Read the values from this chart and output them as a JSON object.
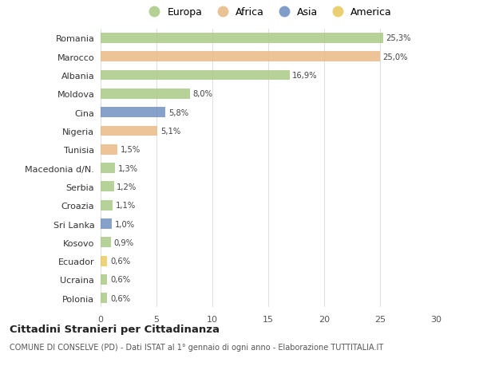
{
  "countries": [
    "Romania",
    "Marocco",
    "Albania",
    "Moldova",
    "Cina",
    "Nigeria",
    "Tunisia",
    "Macedonia d/N.",
    "Serbia",
    "Croazia",
    "Sri Lanka",
    "Kosovo",
    "Ecuador",
    "Ucraina",
    "Polonia"
  ],
  "values": [
    25.3,
    25.0,
    16.9,
    8.0,
    5.8,
    5.1,
    1.5,
    1.3,
    1.2,
    1.1,
    1.0,
    0.9,
    0.6,
    0.6,
    0.6
  ],
  "labels": [
    "25,3%",
    "25,0%",
    "16,9%",
    "8,0%",
    "5,8%",
    "5,1%",
    "1,5%",
    "1,3%",
    "1,2%",
    "1,1%",
    "1,0%",
    "0,9%",
    "0,6%",
    "0,6%",
    "0,6%"
  ],
  "colors": [
    "#a8c882",
    "#e8b882",
    "#a8c882",
    "#a8c882",
    "#6b8cbf",
    "#e8b882",
    "#e8b882",
    "#a8c882",
    "#a8c882",
    "#a8c882",
    "#6b8cbf",
    "#a8c882",
    "#e8c85a",
    "#a8c882",
    "#a8c882"
  ],
  "legend_labels": [
    "Europa",
    "Africa",
    "Asia",
    "America"
  ],
  "legend_colors": [
    "#a8c882",
    "#e8b882",
    "#6b8cbf",
    "#e8c85a"
  ],
  "title": "Cittadini Stranieri per Cittadinanza",
  "subtitle": "COMUNE DI CONSELVE (PD) - Dati ISTAT al 1° gennaio di ogni anno - Elaborazione TUTTITALIA.IT",
  "xlim": [
    0,
    30
  ],
  "xticks": [
    0,
    5,
    10,
    15,
    20,
    25,
    30
  ],
  "bg_color": "#ffffff",
  "grid_color": "#e0e0e0",
  "bar_height": 0.55
}
